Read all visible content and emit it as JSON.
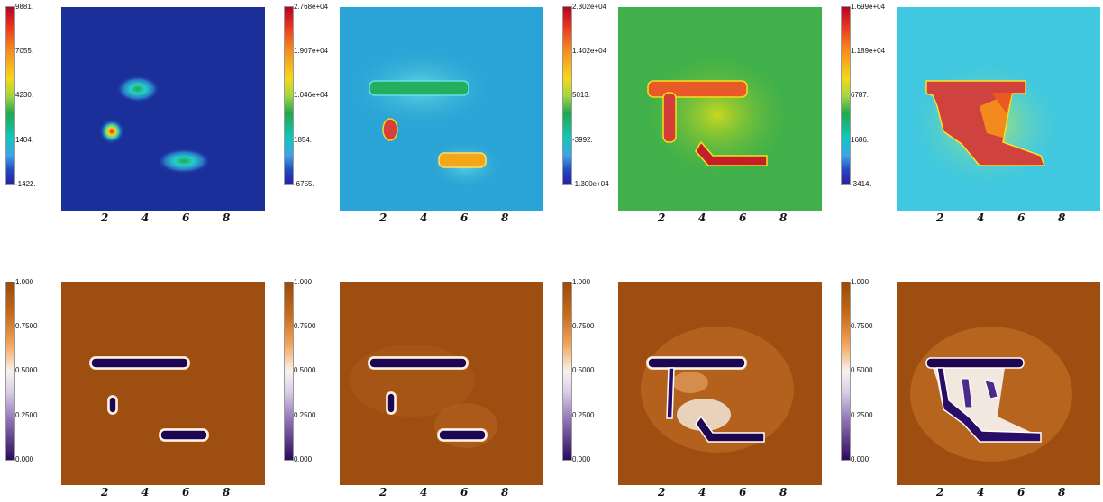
{
  "chart_data": [
    {
      "type": "heatmap",
      "row": "top",
      "panel": 1,
      "colorbar_ticks": [
        "9881.",
        "7055.",
        "4230.",
        "1404.",
        "-1422."
      ],
      "x_ticks": [
        "2",
        "4",
        "6",
        "8"
      ],
      "colormap": "rainbow",
      "shapes": "three inclusions: small round spot near x=2.4, oval spots near x=3.8 and x=5.9"
    },
    {
      "type": "heatmap",
      "row": "top",
      "panel": 2,
      "colorbar_ticks": [
        "2.768e+04",
        "1.907e+04",
        "1.046e+04",
        "1854.",
        "-6755."
      ],
      "x_ticks": [
        "2",
        "4",
        "6",
        "8"
      ],
      "colormap": "rainbow"
    },
    {
      "type": "heatmap",
      "row": "top",
      "panel": 3,
      "colorbar_ticks": [
        "2.302e+04",
        "1.402e+04",
        "5013.",
        "-3992.",
        "-1.300e+04"
      ],
      "x_ticks": [
        "2",
        "4",
        "6",
        "8"
      ],
      "colormap": "rainbow"
    },
    {
      "type": "heatmap",
      "row": "top",
      "panel": 4,
      "colorbar_ticks": [
        "1.699e+04",
        "1.189e+04",
        "6787.",
        "1686.",
        "-3414."
      ],
      "x_ticks": [
        "2",
        "4",
        "6",
        "8"
      ],
      "colormap": "rainbow"
    },
    {
      "type": "heatmap",
      "row": "bottom",
      "panel": 1,
      "colorbar_ticks": [
        "1.000",
        "0.7500",
        "0.5000",
        "0.2500",
        "0.000"
      ],
      "x_ticks": [
        "2",
        "4",
        "6",
        "8"
      ],
      "colormap": "orange-purple diverging"
    },
    {
      "type": "heatmap",
      "row": "bottom",
      "panel": 2,
      "colorbar_ticks": [
        "1.000",
        "0.7500",
        "0.5000",
        "0.2500",
        "0.000"
      ],
      "x_ticks": [
        "2",
        "4",
        "6",
        "8"
      ],
      "colormap": "orange-purple diverging"
    },
    {
      "type": "heatmap",
      "row": "bottom",
      "panel": 3,
      "colorbar_ticks": [
        "1.000",
        "0.7500",
        "0.5000",
        "0.2500",
        "0.000"
      ],
      "x_ticks": [
        "2",
        "4",
        "6",
        "8"
      ],
      "colormap": "orange-purple diverging"
    },
    {
      "type": "heatmap",
      "row": "bottom",
      "panel": 4,
      "colorbar_ticks": [
        "1.000",
        "0.7500",
        "0.5000",
        "0.2500",
        "0.000"
      ],
      "x_ticks": [
        "2",
        "4",
        "6",
        "8"
      ],
      "colormap": "orange-purple diverging"
    }
  ]
}
